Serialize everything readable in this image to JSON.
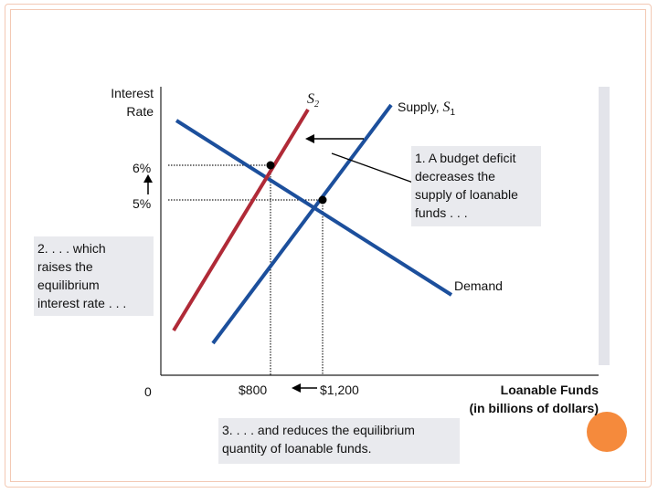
{
  "axes": {
    "y_title_line1": "Interest",
    "y_title_line2": "Rate",
    "x_title_line1": "Loanable Funds",
    "x_title_line2": "(in billions of dollars)",
    "origin": "0"
  },
  "curves": {
    "s2_letter": "S",
    "s2_sub": "2",
    "supply_prefix": "Supply, ",
    "s1_letter": "S",
    "s1_sub": "1",
    "demand": "Demand"
  },
  "ticks": {
    "rate_high": "6%",
    "rate_low": "5%",
    "qty_low": "$800",
    "qty_high": "$1,200"
  },
  "callouts": {
    "c1": [
      "1. A budget deficit",
      "decreases the",
      "supply of loanable",
      "funds . . ."
    ],
    "c2": [
      "2. . . . which",
      "raises the",
      "equilibrium",
      "interest rate . . ."
    ],
    "c3": [
      "3. . . . and reduces the equilibrium",
      "quantity of loanable funds."
    ]
  },
  "colors": {
    "supply": "#1c4f9c",
    "demand": "#1c4f9c",
    "s2": "#b02a37",
    "accent": "#f58a3c"
  }
}
